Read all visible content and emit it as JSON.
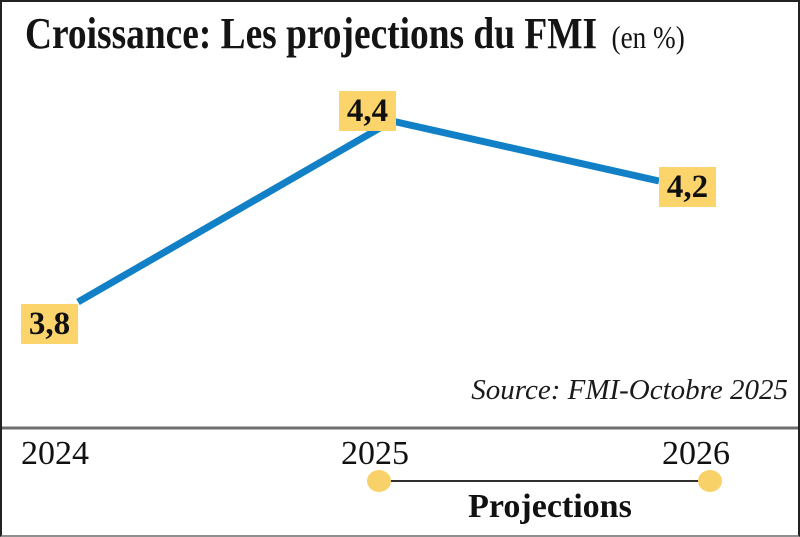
{
  "header": {
    "title": "Croissance: Les projections du FMI",
    "unit": "(en %)"
  },
  "footer": {
    "source": "Source: FMI-Octobre 2025"
  },
  "chart_data": {
    "type": "line",
    "title": "Croissance: Les projections du FMI (en %)",
    "categories": [
      "2024",
      "2025",
      "2026"
    ],
    "series": [
      {
        "name": "Croissance (en %)",
        "values": [
          3.8,
          4.4,
          4.2
        ]
      }
    ],
    "point_labels": [
      "3,8",
      "4,4",
      "4,2"
    ],
    "xlabel": "",
    "ylabel": "",
    "ylim": [
      3.7,
      4.5
    ],
    "grid": false,
    "legend_position": "bottom",
    "annotations": {
      "projections_label": "Projections",
      "projections_span": [
        "2025",
        "2026"
      ],
      "source": "Source: FMI-Octobre 2025"
    },
    "colors": {
      "line": "#1180C6",
      "label_bg": "#FBD46B",
      "dot": "#F9D169",
      "separator": "#6E6E6E",
      "legend_line": "#2F2F2F"
    }
  }
}
